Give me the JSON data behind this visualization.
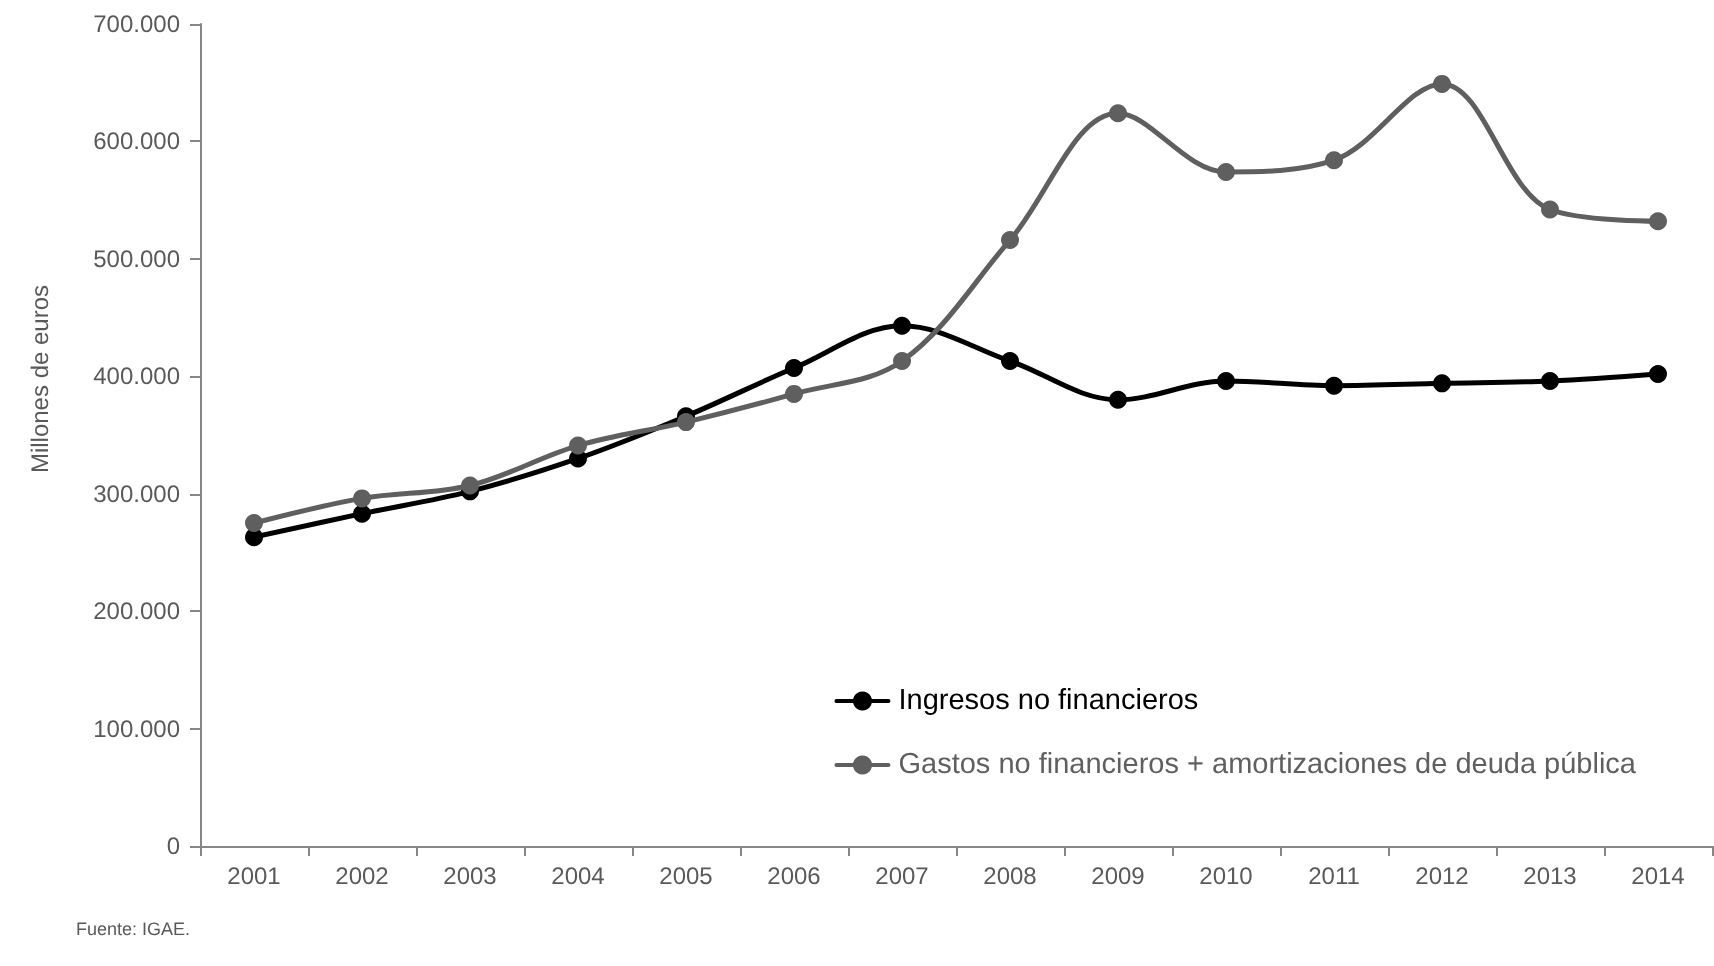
{
  "chart_data": {
    "type": "line",
    "ylabel": "Millones de euros",
    "categories": [
      "2001",
      "2002",
      "2003",
      "2004",
      "2005",
      "2006",
      "2007",
      "2008",
      "2009",
      "2010",
      "2011",
      "2012",
      "2013",
      "2014"
    ],
    "series": [
      {
        "name": "Ingresos no financieros",
        "color": "#000000",
        "values": [
          263000,
          283000,
          302000,
          330000,
          366000,
          407000,
          443000,
          413000,
          380000,
          396000,
          392000,
          394000,
          396000,
          402000
        ]
      },
      {
        "name": "Gastos no financieros + amortizaciones de deuda pública",
        "color": "#5f5f5f",
        "values": [
          275000,
          296000,
          307000,
          341000,
          361000,
          385000,
          413000,
          516000,
          624000,
          574000,
          584000,
          649000,
          542000,
          532000
        ]
      }
    ],
    "ylim": [
      0,
      700000
    ],
    "yticks": [
      0,
      {
        "value": 100000,
        "label": "100.000"
      },
      {
        "value": 200000,
        "label": "200.000"
      },
      {
        "value": 300000,
        "label": "300.000"
      },
      {
        "value": 400000,
        "label": "400.000"
      },
      {
        "value": 500000,
        "label": "500.000"
      },
      {
        "value": 600000,
        "label": "600.000"
      },
      {
        "value": 700000,
        "label": "700.000"
      }
    ],
    "marker": "circle",
    "line_style": "solid",
    "legend": "bottom right",
    "annotations": [
      "Fuente: IGAE."
    ]
  }
}
